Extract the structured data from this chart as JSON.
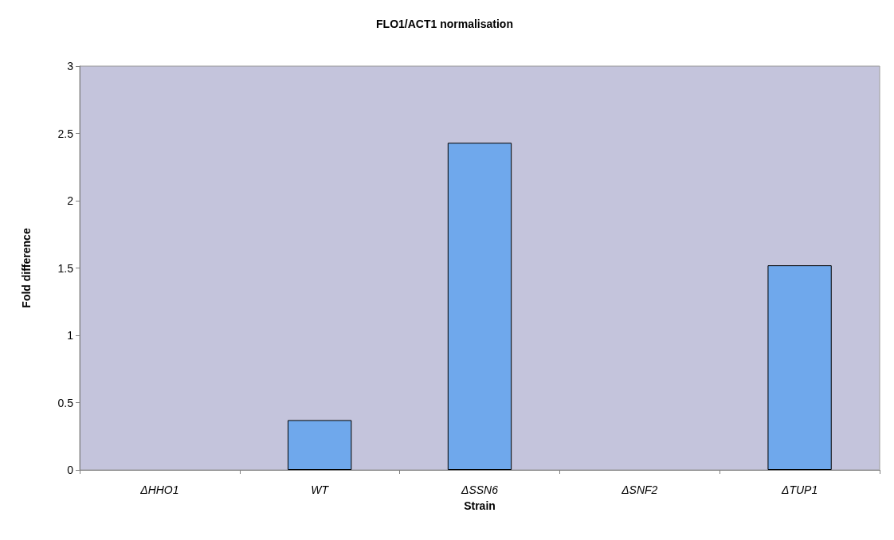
{
  "chart_data": {
    "type": "bar",
    "title": "FLO1/ACT1 normalisation",
    "xlabel": "Strain",
    "ylabel": "Fold difference",
    "categories": [
      "ΔHHO1",
      "WT",
      "ΔSSN6",
      "ΔSNF2",
      "ΔTUP1"
    ],
    "values": [
      null,
      0.37,
      2.43,
      null,
      1.52
    ],
    "color": "#6fa8ec",
    "ylim": [
      0,
      3
    ],
    "yticks": [
      0,
      0.5,
      1,
      1.5,
      2,
      2.5,
      3
    ],
    "grid": false
  }
}
